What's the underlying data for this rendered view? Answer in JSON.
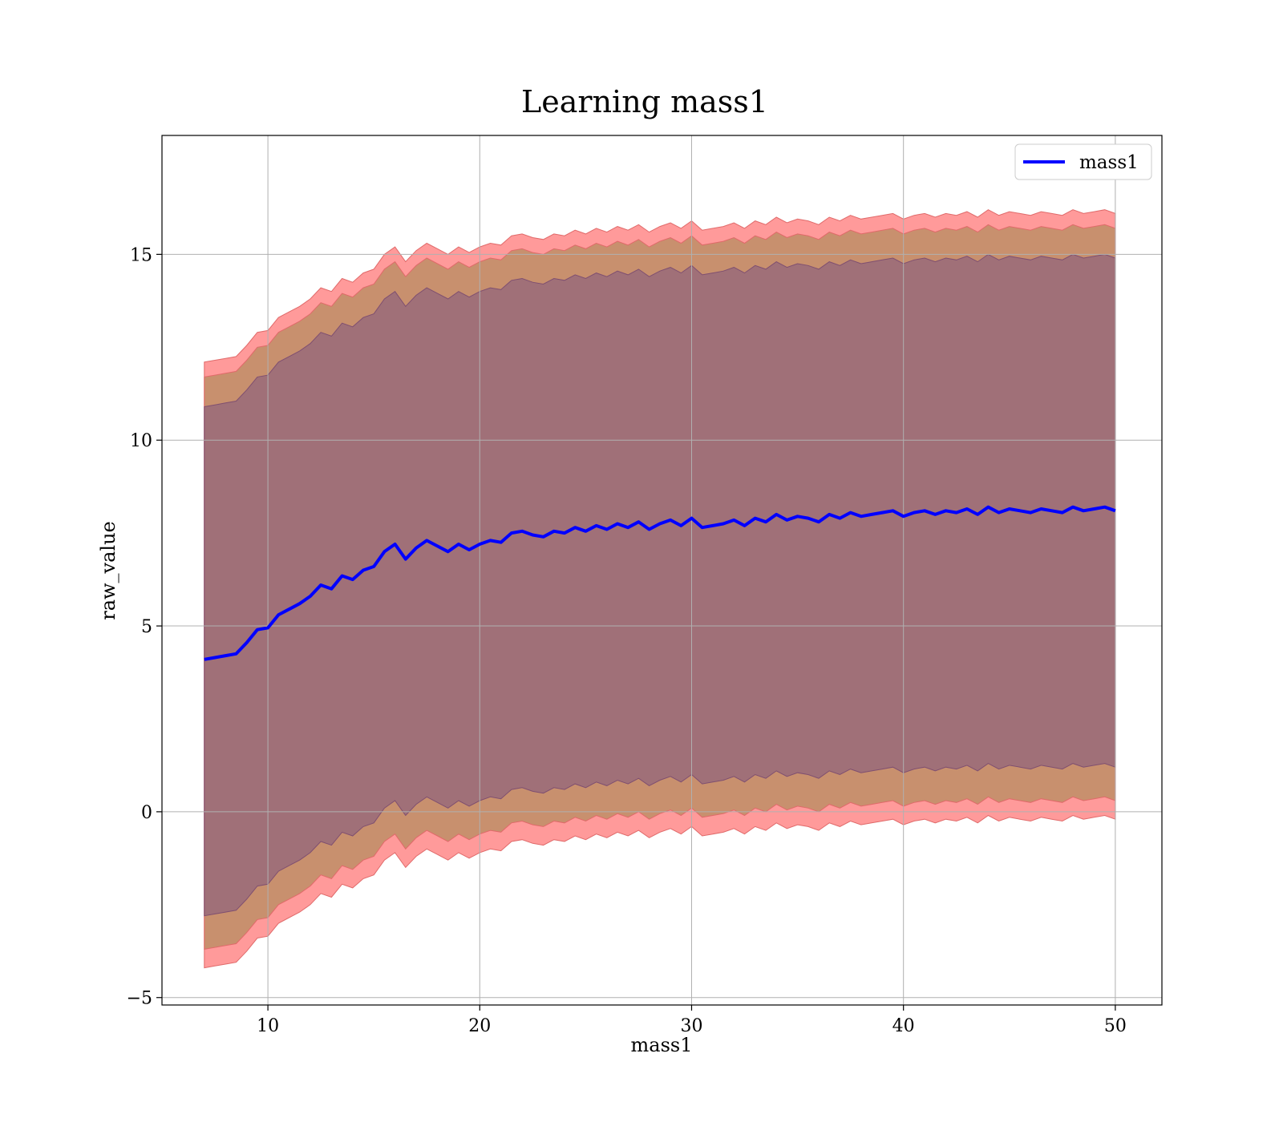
{
  "chart_data": {
    "type": "line",
    "title": "Learning mass1",
    "xlabel": "mass1",
    "ylabel": "raw_value",
    "xlim": [
      5,
      52.2
    ],
    "ylim": [
      -5.2,
      18.2
    ],
    "xticks": [
      10,
      20,
      30,
      40,
      50
    ],
    "xtick_labels": [
      "10",
      "20",
      "30",
      "40",
      "50"
    ],
    "yticks": [
      -5,
      0,
      5,
      10,
      15
    ],
    "ytick_labels": [
      "−5",
      "0",
      "5",
      "10",
      "15"
    ],
    "grid": true,
    "legend": {
      "position": "top-right",
      "entries": [
        "mass1"
      ]
    },
    "colors": {
      "line": "#0000ff",
      "band_outer": "#ff9a9a",
      "band_mid": "#c8906e",
      "band_inner": "#a07078",
      "band_edge_outer": "#e06a6a",
      "band_edge_inner": "#7f4f70",
      "grid": "#b0b0b0"
    },
    "series": [
      {
        "name": "mass1",
        "x": [
          7,
          7.5,
          8,
          8.5,
          9,
          9.5,
          10,
          10.5,
          11,
          11.5,
          12,
          12.5,
          13,
          13.5,
          14,
          14.5,
          15,
          15.5,
          16,
          16.5,
          17,
          17.5,
          18,
          18.5,
          19,
          19.5,
          20,
          20.5,
          21,
          21.5,
          22,
          22.5,
          23,
          23.5,
          24,
          24.5,
          25,
          25.5,
          26,
          26.5,
          27,
          27.5,
          28,
          28.5,
          29,
          29.5,
          30,
          30.5,
          31,
          31.5,
          32,
          32.5,
          33,
          33.5,
          34,
          34.5,
          35,
          35.5,
          36,
          36.5,
          37,
          37.5,
          38,
          38.5,
          39,
          39.5,
          40,
          40.5,
          41,
          41.5,
          42,
          42.5,
          43,
          43.5,
          44,
          44.5,
          45,
          45.5,
          46,
          46.5,
          47,
          47.5,
          48,
          48.5,
          49,
          49.5,
          50
        ],
        "y": [
          4.1,
          4.15,
          4.2,
          4.25,
          4.55,
          4.9,
          4.95,
          5.3,
          5.45,
          5.6,
          5.8,
          6.1,
          6.0,
          6.35,
          6.25,
          6.5,
          6.6,
          7.0,
          7.2,
          6.8,
          7.1,
          7.3,
          7.15,
          7.0,
          7.2,
          7.05,
          7.2,
          7.3,
          7.25,
          7.5,
          7.55,
          7.45,
          7.4,
          7.55,
          7.5,
          7.65,
          7.55,
          7.7,
          7.6,
          7.75,
          7.65,
          7.8,
          7.6,
          7.75,
          7.85,
          7.7,
          7.9,
          7.65,
          7.7,
          7.75,
          7.85,
          7.7,
          7.9,
          7.8,
          8.0,
          7.85,
          7.95,
          7.9,
          7.8,
          8.0,
          7.9,
          8.05,
          7.95,
          8.0,
          8.05,
          8.1,
          7.95,
          8.05,
          8.1,
          8.0,
          8.1,
          8.05,
          8.15,
          8.0,
          8.2,
          8.05,
          8.15,
          8.1,
          8.05,
          8.15,
          8.1,
          8.05,
          8.2,
          8.1,
          8.15,
          8.2,
          8.1
        ]
      }
    ],
    "bands": [
      {
        "name": "outer",
        "upper_offset": 8.0,
        "lower_offset": 8.3
      },
      {
        "name": "mid",
        "upper_offset": 7.6,
        "lower_offset": 7.8
      },
      {
        "name": "inner",
        "upper_offset": 6.8,
        "lower_offset": 6.9
      }
    ]
  }
}
